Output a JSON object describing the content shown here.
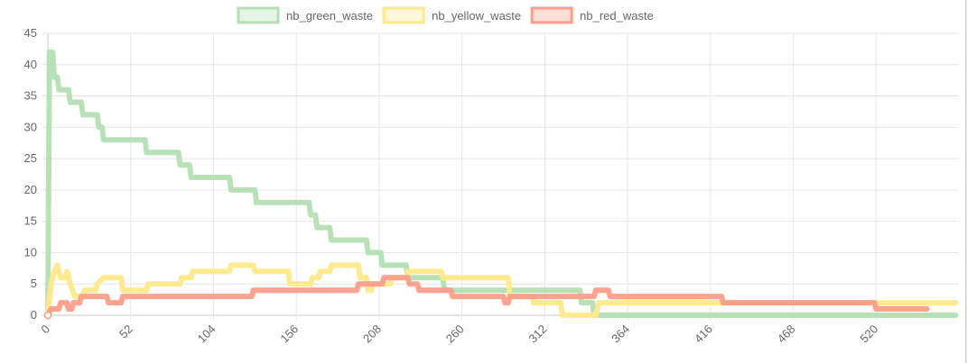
{
  "chart_data": {
    "type": "line",
    "title": "",
    "xlabel": "",
    "ylabel": "",
    "legend_position": "top-center",
    "grid": true,
    "ylim": [
      0,
      45
    ],
    "xlim": [
      0,
      572
    ],
    "x_ticks": [
      0,
      52,
      104,
      156,
      208,
      260,
      312,
      364,
      416,
      468,
      520
    ],
    "y_ticks": [
      0,
      5,
      10,
      15,
      20,
      25,
      30,
      35,
      40,
      45
    ],
    "series": [
      {
        "name": "nb_green_waste",
        "color": "#b4dfb4",
        "points": [
          [
            0,
            0
          ],
          [
            1,
            42
          ],
          [
            3,
            42
          ],
          [
            4,
            38
          ],
          [
            6,
            38
          ],
          [
            7,
            36
          ],
          [
            13,
            36
          ],
          [
            14,
            34
          ],
          [
            21,
            34
          ],
          [
            22,
            32
          ],
          [
            31,
            32
          ],
          [
            32,
            30
          ],
          [
            34,
            30
          ],
          [
            35,
            28
          ],
          [
            61,
            28
          ],
          [
            62,
            26
          ],
          [
            82,
            26
          ],
          [
            83,
            24
          ],
          [
            89,
            24
          ],
          [
            90,
            22
          ],
          [
            114,
            22
          ],
          [
            115,
            20
          ],
          [
            130,
            20
          ],
          [
            131,
            18
          ],
          [
            164,
            18
          ],
          [
            165,
            16
          ],
          [
            168,
            16
          ],
          [
            169,
            14
          ],
          [
            177,
            14
          ],
          [
            178,
            12
          ],
          [
            200,
            12
          ],
          [
            201,
            10
          ],
          [
            209,
            10
          ],
          [
            210,
            8
          ],
          [
            225,
            8
          ],
          [
            226,
            6
          ],
          [
            248,
            6
          ],
          [
            249,
            4
          ],
          [
            334,
            4
          ],
          [
            335,
            2
          ],
          [
            342,
            2
          ],
          [
            343,
            0
          ],
          [
            570,
            0
          ]
        ]
      },
      {
        "name": "nb_yellow_waste",
        "color": "#ffe98a",
        "points": [
          [
            0,
            0
          ],
          [
            2,
            5
          ],
          [
            4,
            7
          ],
          [
            6,
            8
          ],
          [
            8,
            6
          ],
          [
            11,
            6
          ],
          [
            12,
            7
          ],
          [
            14,
            5
          ],
          [
            17,
            3
          ],
          [
            22,
            3
          ],
          [
            23,
            4
          ],
          [
            30,
            4
          ],
          [
            31,
            5
          ],
          [
            35,
            6
          ],
          [
            46,
            6
          ],
          [
            47,
            4
          ],
          [
            62,
            4
          ],
          [
            63,
            5
          ],
          [
            83,
            5
          ],
          [
            84,
            6
          ],
          [
            90,
            6
          ],
          [
            91,
            7
          ],
          [
            114,
            7
          ],
          [
            115,
            8
          ],
          [
            129,
            8
          ],
          [
            130,
            7
          ],
          [
            151,
            7
          ],
          [
            152,
            5
          ],
          [
            165,
            5
          ],
          [
            166,
            6
          ],
          [
            170,
            6
          ],
          [
            171,
            7
          ],
          [
            177,
            7
          ],
          [
            178,
            8
          ],
          [
            195,
            8
          ],
          [
            196,
            6
          ],
          [
            200,
            6
          ],
          [
            201,
            4
          ],
          [
            203,
            4
          ],
          [
            204,
            5
          ],
          [
            215,
            5
          ],
          [
            216,
            6
          ],
          [
            225,
            6
          ],
          [
            226,
            7
          ],
          [
            247,
            7
          ],
          [
            248,
            6
          ],
          [
            289,
            6
          ],
          [
            290,
            3
          ],
          [
            304,
            3
          ],
          [
            305,
            2
          ],
          [
            322,
            2
          ],
          [
            323,
            0
          ],
          [
            344,
            0
          ],
          [
            345,
            1
          ],
          [
            346,
            2
          ],
          [
            570,
            2
          ]
        ]
      },
      {
        "name": "nb_red_waste",
        "color": "#ff9d8a",
        "points": [
          [
            0,
            0
          ],
          [
            2,
            1
          ],
          [
            7,
            1
          ],
          [
            8,
            2
          ],
          [
            12,
            2
          ],
          [
            13,
            1
          ],
          [
            15,
            1
          ],
          [
            16,
            2
          ],
          [
            20,
            2
          ],
          [
            21,
            3
          ],
          [
            37,
            3
          ],
          [
            38,
            2
          ],
          [
            46,
            2
          ],
          [
            47,
            3
          ],
          [
            128,
            3
          ],
          [
            129,
            4
          ],
          [
            155,
            4
          ],
          [
            156,
            4
          ],
          [
            194,
            4
          ],
          [
            195,
            5
          ],
          [
            210,
            5
          ],
          [
            211,
            6
          ],
          [
            226,
            6
          ],
          [
            227,
            5
          ],
          [
            232,
            5
          ],
          [
            233,
            4
          ],
          [
            253,
            4
          ],
          [
            254,
            3
          ],
          [
            286,
            3
          ],
          [
            287,
            2
          ],
          [
            289,
            2
          ],
          [
            290,
            3
          ],
          [
            343,
            3
          ],
          [
            344,
            4
          ],
          [
            352,
            4
          ],
          [
            353,
            3
          ],
          [
            423,
            3
          ],
          [
            424,
            2
          ],
          [
            519,
            2
          ],
          [
            520,
            1
          ],
          [
            552,
            1
          ]
        ]
      }
    ]
  }
}
